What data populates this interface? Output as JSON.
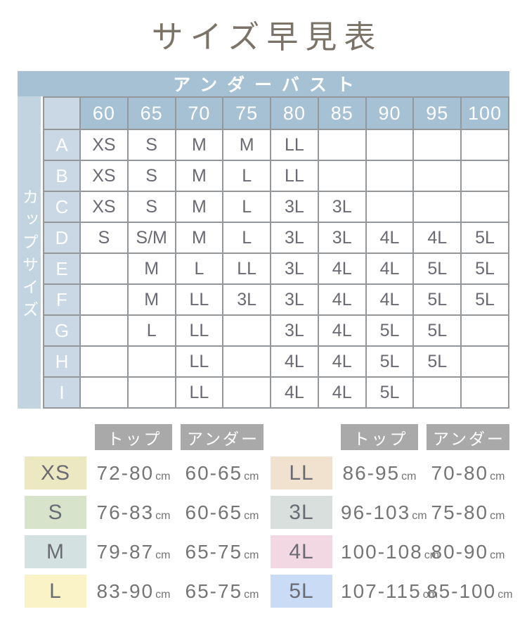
{
  "title": "サイズ早見表",
  "chart_data": {
    "type": "table",
    "title": "サイズ早見表",
    "underbust_label": "アンダーバスト",
    "cup_label": "カップサイズ",
    "underbust_columns": [
      "60",
      "65",
      "70",
      "75",
      "80",
      "85",
      "90",
      "95",
      "100"
    ],
    "rows": [
      {
        "cup": "A",
        "cells": [
          "XS",
          "S",
          "M",
          "M",
          "LL",
          "",
          "",
          "",
          ""
        ]
      },
      {
        "cup": "B",
        "cells": [
          "XS",
          "S",
          "M",
          "L",
          "LL",
          "",
          "",
          "",
          ""
        ]
      },
      {
        "cup": "C",
        "cells": [
          "XS",
          "S",
          "M",
          "L",
          "3L",
          "3L",
          "",
          "",
          ""
        ]
      },
      {
        "cup": "D",
        "cells": [
          "S",
          "S/M",
          "M",
          "L",
          "3L",
          "3L",
          "4L",
          "4L",
          "5L"
        ]
      },
      {
        "cup": "E",
        "cells": [
          "",
          "M",
          "L",
          "LL",
          "3L",
          "4L",
          "4L",
          "5L",
          "5L"
        ]
      },
      {
        "cup": "F",
        "cells": [
          "",
          "M",
          "LL",
          "3L",
          "3L",
          "4L",
          "4L",
          "5L",
          "5L"
        ]
      },
      {
        "cup": "G",
        "cells": [
          "",
          "L",
          "LL",
          "",
          "3L",
          "4L",
          "5L",
          "5L",
          ""
        ]
      },
      {
        "cup": "H",
        "cells": [
          "",
          "",
          "LL",
          "",
          "4L",
          "4L",
          "5L",
          "5L",
          ""
        ]
      },
      {
        "cup": "I",
        "cells": [
          "",
          "",
          "LL",
          "",
          "4L",
          "4L",
          "5L",
          "",
          ""
        ]
      }
    ],
    "legend_headers": {
      "top": "トップ",
      "under": "アンダー"
    },
    "unit": "cm",
    "legend_left": [
      {
        "size": "XS",
        "top": "72-80",
        "under": "60-65"
      },
      {
        "size": "S",
        "top": "76-83",
        "under": "60-65"
      },
      {
        "size": "M",
        "top": "79-87",
        "under": "65-75"
      },
      {
        "size": "L",
        "top": "83-90",
        "under": "65-75"
      }
    ],
    "legend_right": [
      {
        "size": "LL",
        "top": "86-95",
        "under": "70-80"
      },
      {
        "size": "3L",
        "top": "96-103",
        "under": "75-80"
      },
      {
        "size": "4L",
        "top": "100-108",
        "under": "80-90"
      },
      {
        "size": "5L",
        "top": "107-115",
        "under": "85-100"
      }
    ]
  },
  "colors": {
    "XS": "#ece8c2",
    "S": "#d8e3cb",
    "M": "#d3e1e0",
    "L": "#faf3c8",
    "LL": "#f1e2cf",
    "3L": "#d9dfdd",
    "4L": "#f2d8e3",
    "5L": "#c9dbf5",
    "band": "#a6c1d3",
    "lightblue": "#c9d8e4",
    "strip": "#c3d4e1",
    "legendhead": "#a9a9a9",
    "border": "#94989b"
  }
}
